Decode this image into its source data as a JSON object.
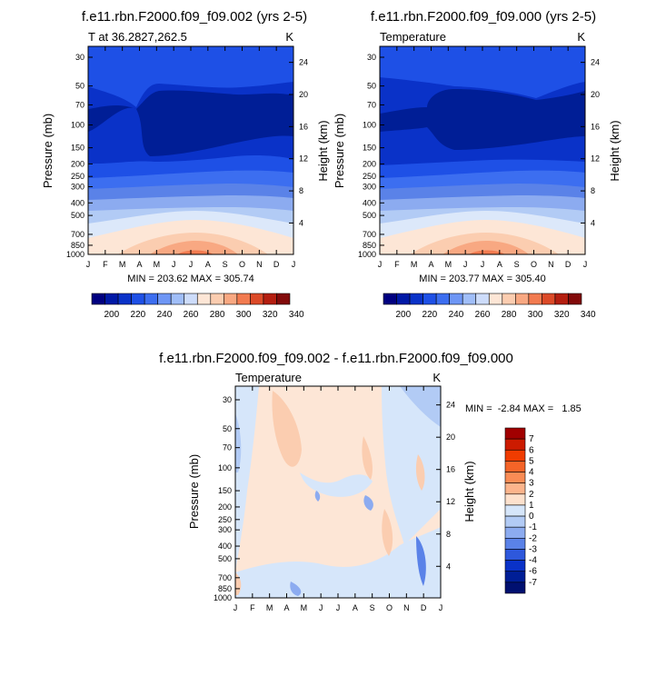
{
  "chart_data": [
    {
      "type": "heatmap",
      "title": "f.e11.rbn.F2000.f09_f09.002 (yrs 2-5)",
      "subtitle_left": "T at 36.2827,262.5",
      "units": "K",
      "ylabel": "Pressure (mb)",
      "ylabel_right": "Height (km)",
      "stats": "MIN = 203.62 MAX = 305.74",
      "colorbar_labels": [
        "200",
        "220",
        "240",
        "260",
        "280",
        "300",
        "320",
        "340"
      ]
    },
    {
      "type": "heatmap",
      "title": "f.e11.rbn.F2000.f09_f09.000 (yrs 2-5)",
      "subtitle_left": "Temperature",
      "units": "K",
      "ylabel": "Pressure (mb)",
      "ylabel_right": "Height (km)",
      "stats": "MIN = 203.77 MAX = 305.40",
      "colorbar_labels": [
        "200",
        "220",
        "240",
        "260",
        "280",
        "300",
        "320",
        "340"
      ]
    },
    {
      "type": "heatmap",
      "title": "f.e11.rbn.F2000.f09_f09.002 - f.e11.rbn.F2000.f09_f09.000",
      "subtitle_left": "Temperature",
      "units": "K",
      "ylabel": "Pressure (mb)",
      "ylabel_right": "Height (km)",
      "stats": "MIN =  -2.84 MAX =   1.85",
      "colorbar_labels": [
        "7",
        "6",
        "5",
        "4",
        "3",
        "2",
        "1",
        "0",
        "-1",
        "-2",
        "-3",
        "-4",
        "-6",
        "-7"
      ]
    }
  ],
  "axes": {
    "months": [
      "J",
      "F",
      "M",
      "A",
      "M",
      "J",
      "J",
      "A",
      "S",
      "O",
      "N",
      "D",
      "J"
    ],
    "pressure_ticks": [
      "30",
      "50",
      "70",
      "100",
      "150",
      "200",
      "250",
      "300",
      "400",
      "500",
      "700",
      "850",
      "1000"
    ],
    "pressure_values": [
      30,
      50,
      70,
      100,
      150,
      200,
      250,
      300,
      400,
      500,
      700,
      850,
      1000
    ],
    "height_ticks_km": [
      "24",
      "20",
      "16",
      "12",
      "8",
      "4"
    ],
    "height_values_km": [
      24,
      20,
      16,
      12,
      8,
      4
    ]
  },
  "colors": {
    "temperature_scale": [
      "#000080",
      "#0019a6",
      "#0a32c8",
      "#1e50e6",
      "#3c6ef0",
      "#6e96f5",
      "#a0bef8",
      "#cddcfa",
      "#fde6d6",
      "#fbcdb0",
      "#f8a882",
      "#f27b50",
      "#dc4a28",
      "#b41e10",
      "#820a0a"
    ],
    "difference_scale": [
      "#a10000",
      "#cc1b00",
      "#f03c00",
      "#f56428",
      "#fa8c55",
      "#fcb48c",
      "#fde1cd",
      "#d6e6fa",
      "#b2cbf5",
      "#8cabf0",
      "#5a82e8",
      "#2e58dc",
      "#0a32c8",
      "#001e96",
      "#001070"
    ]
  }
}
